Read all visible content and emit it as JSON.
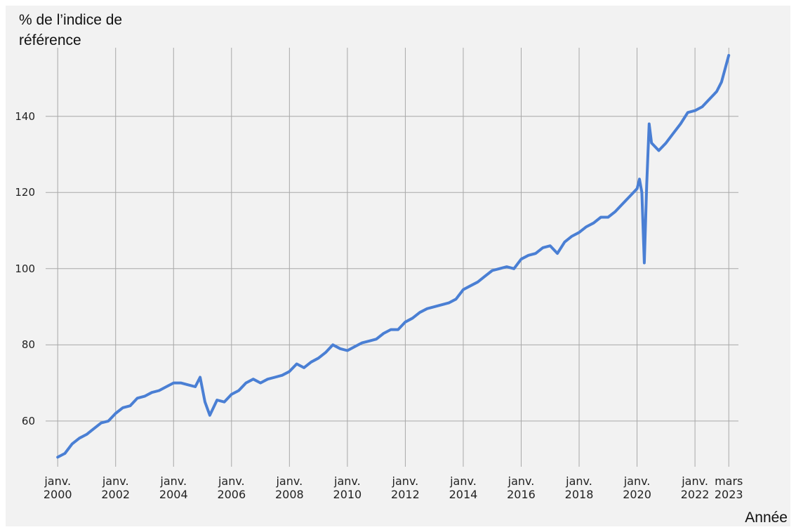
{
  "chart_data": {
    "type": "line",
    "ylabel": "% de l’indice de référence",
    "xlabel": "Année",
    "color": "#4a7fd4",
    "grid": true,
    "xlim": [
      "1999-08",
      "2023-07"
    ],
    "ylim": [
      48,
      158
    ],
    "yticks": [
      60,
      80,
      100,
      120,
      140
    ],
    "xticks": [
      {
        "value": "2000-01",
        "label": "janv. 2000"
      },
      {
        "value": "2002-01",
        "label": "janv. 2002"
      },
      {
        "value": "2004-01",
        "label": "janv. 2004"
      },
      {
        "value": "2006-01",
        "label": "janv. 2006"
      },
      {
        "value": "2008-01",
        "label": "janv. 2008"
      },
      {
        "value": "2010-01",
        "label": "janv. 2010"
      },
      {
        "value": "2012-01",
        "label": "janv. 2012"
      },
      {
        "value": "2014-01",
        "label": "janv. 2014"
      },
      {
        "value": "2016-01",
        "label": "janv. 2016"
      },
      {
        "value": "2018-01",
        "label": "janv. 2018"
      },
      {
        "value": "2020-01",
        "label": "janv. 2020"
      },
      {
        "value": "2022-01",
        "label": "janv. 2022"
      },
      {
        "value": "2023-03",
        "label": "mars 2023"
      }
    ],
    "x": [
      "2000-01",
      "2000-04",
      "2000-07",
      "2000-10",
      "2001-01",
      "2001-04",
      "2001-07",
      "2001-10",
      "2002-01",
      "2002-04",
      "2002-07",
      "2002-10",
      "2003-01",
      "2003-04",
      "2003-07",
      "2003-10",
      "2004-01",
      "2004-04",
      "2004-07",
      "2004-10",
      "2004-12",
      "2005-02",
      "2005-04",
      "2005-07",
      "2005-10",
      "2006-01",
      "2006-04",
      "2006-07",
      "2006-10",
      "2007-01",
      "2007-04",
      "2007-07",
      "2007-10",
      "2008-01",
      "2008-04",
      "2008-07",
      "2008-10",
      "2009-01",
      "2009-04",
      "2009-07",
      "2009-10",
      "2010-01",
      "2010-04",
      "2010-07",
      "2010-10",
      "2011-01",
      "2011-04",
      "2011-07",
      "2011-10",
      "2012-01",
      "2012-04",
      "2012-07",
      "2012-10",
      "2013-01",
      "2013-04",
      "2013-07",
      "2013-10",
      "2014-01",
      "2014-04",
      "2014-07",
      "2014-10",
      "2015-01",
      "2015-04",
      "2015-07",
      "2015-10",
      "2016-01",
      "2016-04",
      "2016-07",
      "2016-10",
      "2017-01",
      "2017-04",
      "2017-07",
      "2017-10",
      "2018-01",
      "2018-04",
      "2018-07",
      "2018-10",
      "2019-01",
      "2019-04",
      "2019-07",
      "2019-10",
      "2020-01",
      "2020-02",
      "2020-03",
      "2020-04",
      "2020-05",
      "2020-06",
      "2020-07",
      "2020-10",
      "2021-01",
      "2021-04",
      "2021-07",
      "2021-10",
      "2022-01",
      "2022-04",
      "2022-07",
      "2022-10",
      "2022-12",
      "2023-03"
    ],
    "values": [
      50.5,
      51.5,
      54,
      55.5,
      56.5,
      58,
      59.5,
      60,
      62,
      63.5,
      64,
      66,
      66.5,
      67.5,
      68,
      69,
      70,
      70,
      69.5,
      69,
      71.5,
      65,
      61.5,
      65.5,
      65,
      67,
      68,
      70,
      71,
      70,
      71,
      71.5,
      72,
      73,
      75,
      74,
      75.5,
      76.5,
      78,
      80,
      79,
      78.5,
      79.5,
      80.5,
      81,
      81.5,
      83,
      84,
      84,
      86,
      87,
      88.5,
      89.5,
      90,
      90.5,
      91,
      92,
      94.5,
      95.5,
      96.5,
      98,
      99.5,
      100,
      100.5,
      100,
      102.5,
      103.5,
      104,
      105.5,
      106,
      104,
      107,
      108.5,
      109.5,
      111,
      112,
      113.5,
      113.5,
      115,
      117,
      119,
      121,
      123.5,
      120,
      101.5,
      122,
      138,
      133,
      131,
      133,
      135.5,
      138,
      141,
      141.5,
      142.5,
      144.5,
      146.5,
      149,
      156
    ]
  }
}
